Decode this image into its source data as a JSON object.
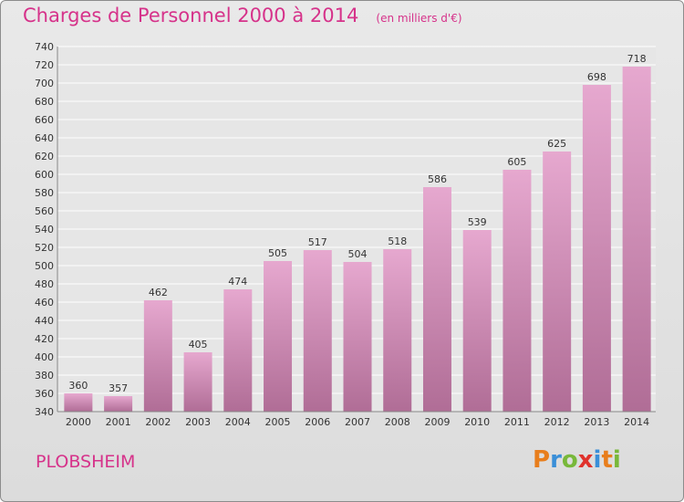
{
  "title": "Charges de Personnel 2000 à 2014",
  "unit_note": "(en milliers d'€)",
  "commune": "PLOBSHEIM",
  "brand": {
    "letters": [
      "P",
      "r",
      "o",
      "x",
      "i",
      "t",
      "i"
    ],
    "colors": [
      "#e87e1c",
      "#3a8fd8",
      "#78b83a",
      "#e0322c",
      "#3a8fd8",
      "#e87e1c",
      "#78b83a"
    ]
  },
  "colors": {
    "bar_top": "#e6a8cf",
    "bar_bottom": "#b06d96",
    "grid": "#ffffff",
    "plot_bg": "#e6e6e6",
    "title": "#d6328a"
  },
  "chart_data": {
    "type": "bar",
    "title": "Charges de Personnel 2000 à 2014",
    "subtitle": "(en milliers d'€)",
    "xlabel": "",
    "ylabel": "",
    "categories": [
      "2000",
      "2001",
      "2002",
      "2003",
      "2004",
      "2005",
      "2006",
      "2007",
      "2008",
      "2009",
      "2010",
      "2011",
      "2012",
      "2013",
      "2014"
    ],
    "values": [
      360,
      357,
      462,
      405,
      474,
      505,
      517,
      504,
      518,
      586,
      539,
      605,
      625,
      698,
      718
    ],
    "ylim": [
      340,
      740
    ],
    "yticks": [
      340,
      360,
      380,
      400,
      420,
      440,
      460,
      480,
      500,
      520,
      540,
      560,
      580,
      600,
      620,
      640,
      660,
      680,
      700,
      720,
      740
    ],
    "grid": true,
    "data_labels": true
  }
}
